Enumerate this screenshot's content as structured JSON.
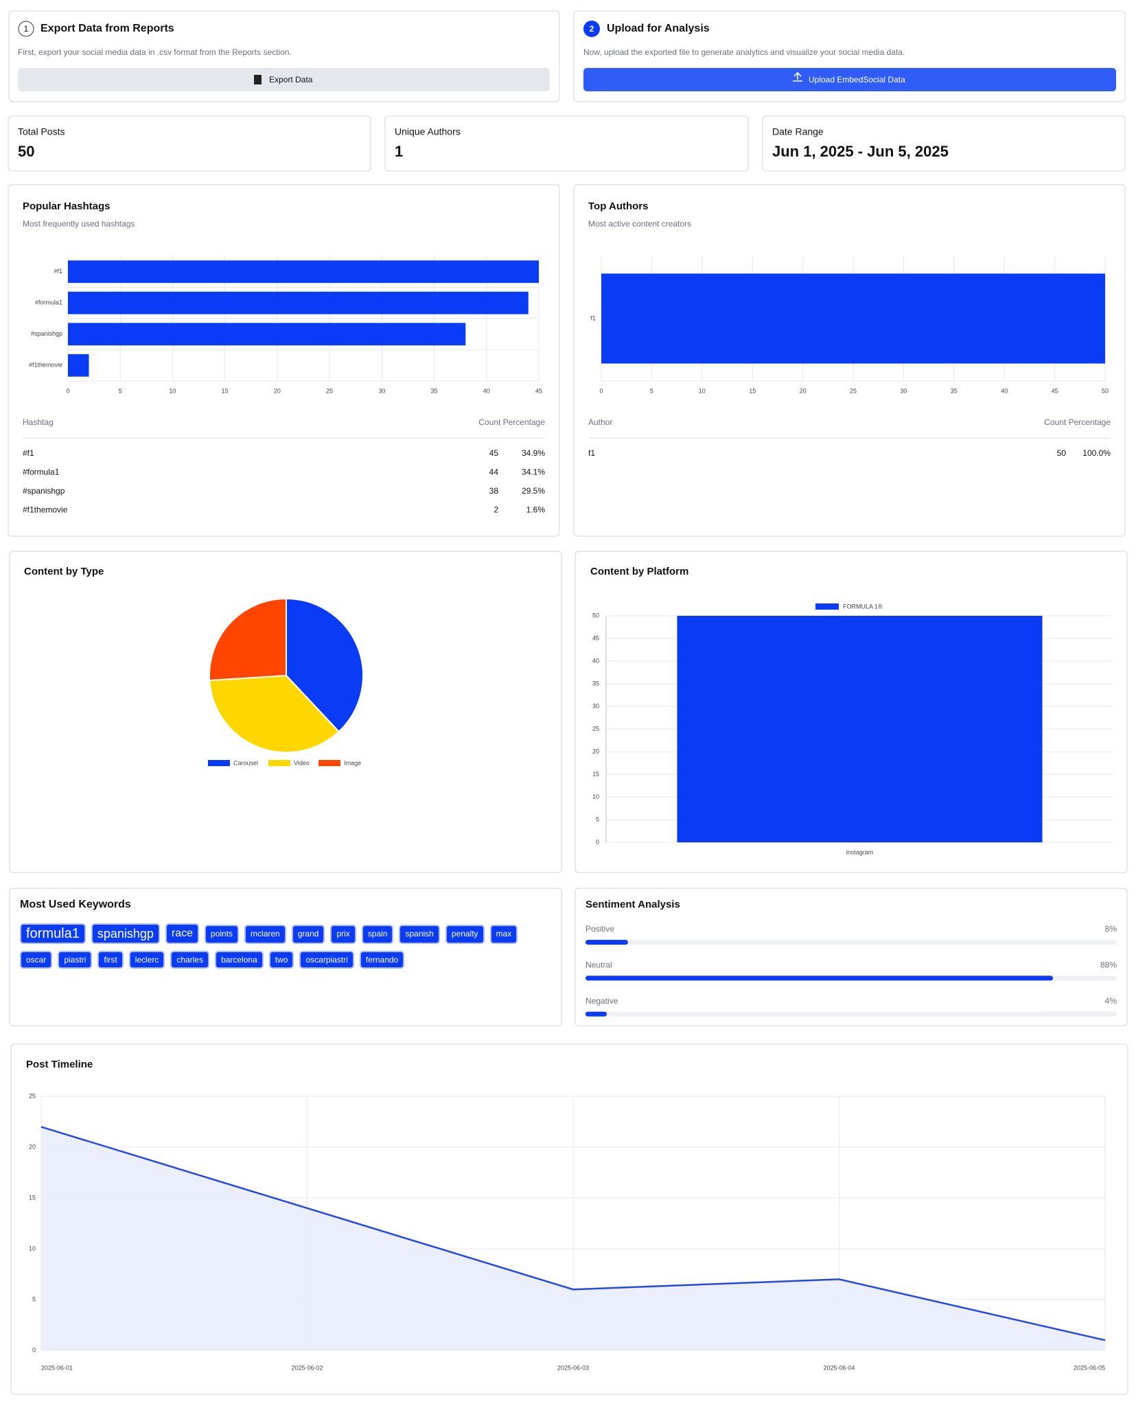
{
  "steps": [
    {
      "number": "1",
      "title": "Export Data from Reports",
      "text": "First, export your social media data in .csv format from the Reports section.",
      "button": "Export Data"
    },
    {
      "number": "2",
      "title": "Upload for Analysis",
      "text": "Now, upload the exported file to generate analytics and visualize your social media data.",
      "button": "Upload EmbedSocial Data"
    }
  ],
  "stats": [
    {
      "label": "Total Posts",
      "value": "50"
    },
    {
      "label": "Unique Authors",
      "value": "1"
    },
    {
      "label": "Date Range",
      "value": "Jun 1, 2025 - Jun 5, 2025"
    }
  ],
  "keywords": {
    "title": "Most Used Keywords",
    "words": [
      "formula1",
      "spanishgp",
      "race",
      "points",
      "mclaren",
      "grand",
      "prix",
      "spain",
      "spanish",
      "penalty",
      "max",
      "oscar",
      "piastri",
      "first",
      "leclerc",
      "charles",
      "barcelona",
      "two",
      "oscarpiastri",
      "fernando"
    ]
  },
  "chart_data": [
    {
      "type": "hbar",
      "title": "Popular Hashtags",
      "subtitle": "Most frequently used hashtags",
      "categories": [
        "#f1",
        "#formula1",
        "#spanishgp",
        "#f1themovie"
      ],
      "values": [
        45,
        44,
        38,
        2
      ],
      "color": "#0a3bf5",
      "xlim": [
        0,
        45
      ],
      "xticks": [
        0,
        5,
        10,
        15,
        20,
        25,
        30,
        35,
        40,
        45
      ],
      "grid": true,
      "table": {
        "headers": [
          "Hashtag",
          "Count Percentage"
        ],
        "rows": [
          [
            "#f1",
            "45",
            "34.9%"
          ],
          [
            "#formula1",
            "44",
            "34.1%"
          ],
          [
            "#spanishgp",
            "38",
            "29.5%"
          ],
          [
            "#f1themovie",
            "2",
            "1.6%"
          ]
        ]
      }
    },
    {
      "type": "hbar",
      "title": "Top Authors",
      "subtitle": "Most active content creators",
      "categories": [
        "f1"
      ],
      "values": [
        50
      ],
      "color": "#0a3bf5",
      "xlim": [
        0,
        50
      ],
      "xticks": [
        0,
        5,
        10,
        15,
        20,
        25,
        30,
        35,
        40,
        45,
        50
      ],
      "grid": true,
      "table": {
        "headers": [
          "Author",
          "Count Percentage"
        ],
        "rows": [
          [
            "f1",
            "50",
            "100.0%"
          ]
        ]
      }
    },
    {
      "type": "pie",
      "title": "Content by Type",
      "categories": [
        "Carousel",
        "Video",
        "Image"
      ],
      "values": [
        19,
        18,
        13
      ],
      "colors": [
        "#0a3bf5",
        "#ffd700",
        "#ff4500"
      ]
    },
    {
      "type": "bar",
      "title": "Content by Platform",
      "categories": [
        "instagram"
      ],
      "series": [
        {
          "name": "FORMULA 1®",
          "color": "#0a3bf5",
          "values": [
            50
          ]
        }
      ],
      "ylim": [
        0,
        50
      ],
      "yticks": [
        0,
        5,
        10,
        15,
        20,
        25,
        30,
        35,
        40,
        45,
        50
      ],
      "grid": true
    },
    {
      "type": "progress",
      "title": "Sentiment Analysis",
      "categories": [
        "Positive",
        "Neutral",
        "Negative"
      ],
      "values": [
        8,
        88,
        4
      ],
      "value_labels": [
        "8%",
        "88%",
        "4%"
      ],
      "color": "#0a3bf5"
    },
    {
      "type": "line",
      "title": "Post Timeline",
      "x": [
        "2025-06-01",
        "2025-06-02",
        "2025-06-03",
        "2025-06-04",
        "2025-06-05"
      ],
      "values": [
        22,
        14,
        6,
        7,
        1
      ],
      "color": "#2448e6",
      "ylim": [
        0,
        25
      ],
      "yticks": [
        0,
        5,
        10,
        15,
        20,
        25
      ],
      "grid": true
    }
  ]
}
